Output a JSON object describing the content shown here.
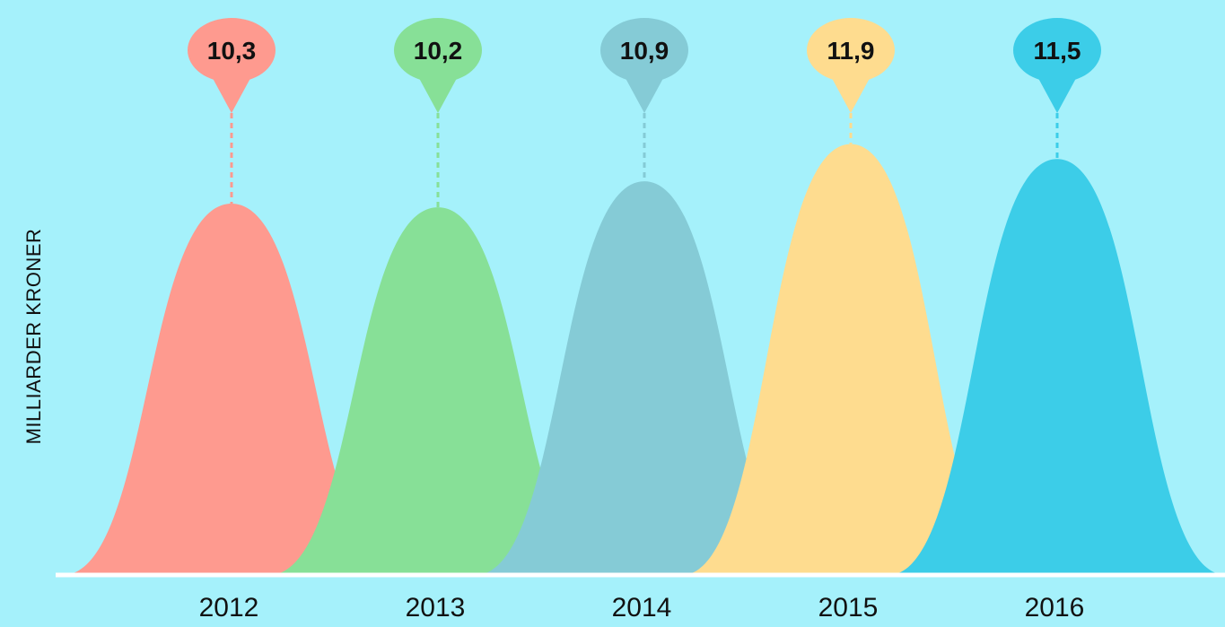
{
  "chart_data": {
    "type": "area",
    "categories": [
      "2012",
      "2013",
      "2014",
      "2015",
      "2016"
    ],
    "values": [
      10.3,
      10.2,
      10.9,
      11.9,
      11.5
    ],
    "value_labels": [
      "10,3",
      "10,2",
      "10,9",
      "11,9",
      "11,5"
    ],
    "ylabel": "MILLIARDER KRONER",
    "colors": [
      "#fe9a8f",
      "#87e097",
      "#85cbd6",
      "#fedc8f",
      "#3ccde8"
    ],
    "grid": false,
    "legend": "none"
  }
}
